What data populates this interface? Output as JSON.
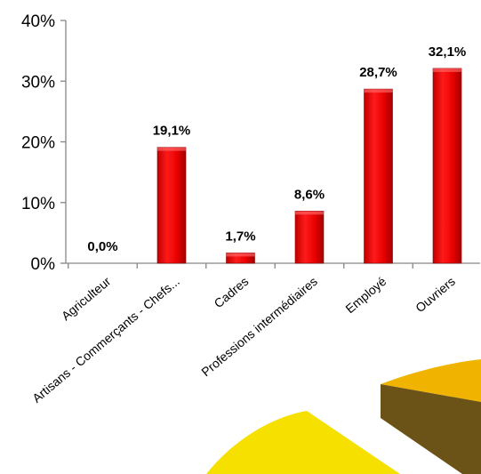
{
  "chart_data": {
    "type": "bar",
    "categories": [
      "Agriculteur",
      "Artisans - Commerçants - Chefs...",
      "Cadres",
      "Professions intermédiaires",
      "Employé",
      "Ouvriers"
    ],
    "values": [
      0.0,
      19.1,
      1.7,
      8.6,
      28.7,
      32.1
    ],
    "data_labels": [
      "0,0%",
      "19,1%",
      "1,7%",
      "8,6%",
      "28,7%",
      "32,1%"
    ],
    "y_ticks": [
      0,
      10,
      20,
      30,
      40
    ],
    "y_tick_labels": [
      "0%",
      "10%",
      "20%",
      "30%",
      "40%"
    ],
    "ylim": [
      0,
      40
    ],
    "grid": false,
    "bar_color": "#e80000",
    "title": "",
    "xlabel": "",
    "ylabel": ""
  },
  "decoration": {
    "colors": [
      "#f5e000",
      "#f0b400",
      "#6b5318"
    ]
  }
}
